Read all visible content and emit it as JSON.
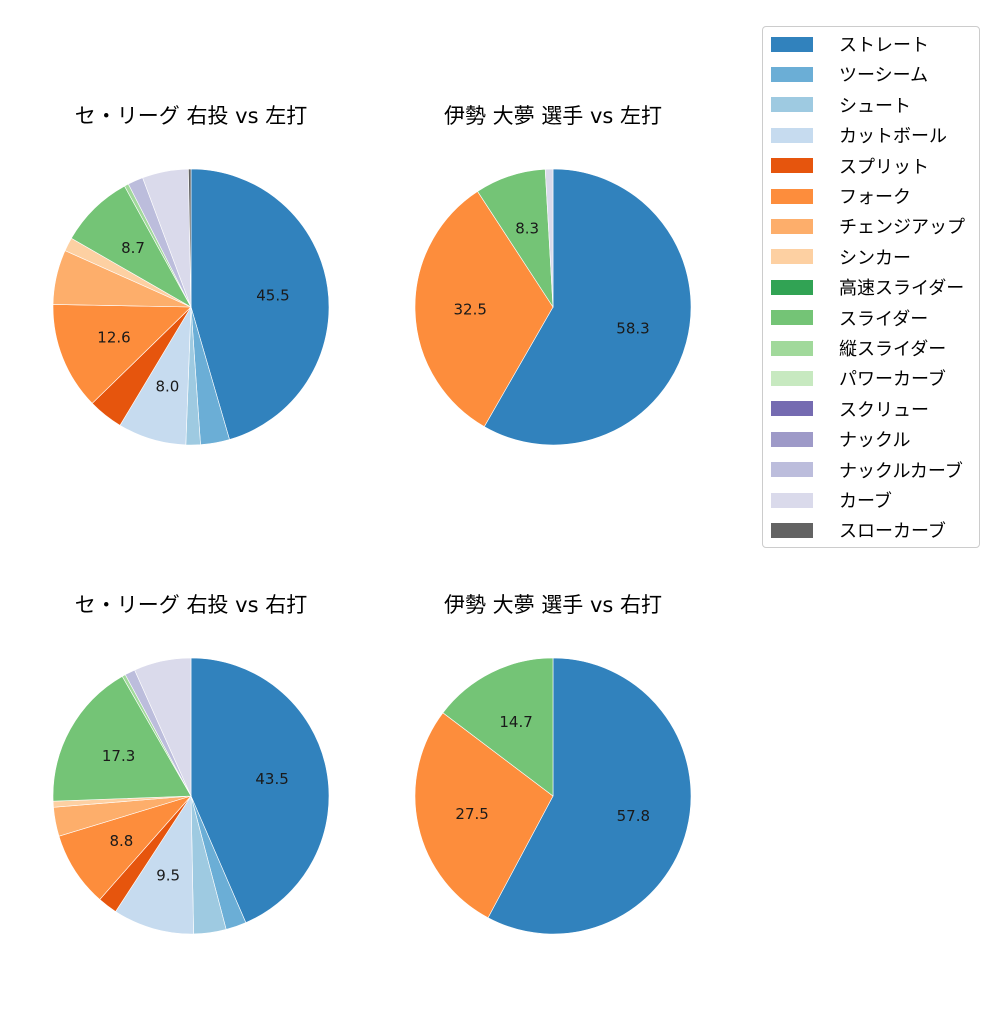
{
  "legend": {
    "items": [
      {
        "label": "ストレート",
        "color": "#3182bd"
      },
      {
        "label": "ツーシーム",
        "color": "#6baed6"
      },
      {
        "label": "シュート",
        "color": "#9ecae1"
      },
      {
        "label": "カットボール",
        "color": "#c6dbef"
      },
      {
        "label": "スプリット",
        "color": "#e6550d"
      },
      {
        "label": "フォーク",
        "color": "#fd8d3c"
      },
      {
        "label": "チェンジアップ",
        "color": "#fdae6b"
      },
      {
        "label": "シンカー",
        "color": "#fdd0a2"
      },
      {
        "label": "高速スライダー",
        "color": "#31a354"
      },
      {
        "label": "スライダー",
        "color": "#74c476"
      },
      {
        "label": "縦スライダー",
        "color": "#a1d99b"
      },
      {
        "label": "パワーカーブ",
        "color": "#c7e9c0"
      },
      {
        "label": "スクリュー",
        "color": "#756bb1"
      },
      {
        "label": "ナックル",
        "color": "#9e9ac8"
      },
      {
        "label": "ナックルカーブ",
        "color": "#bcbddc"
      },
      {
        "label": "カーブ",
        "color": "#dadaeb"
      },
      {
        "label": "スローカーブ",
        "color": "#636363"
      }
    ]
  },
  "chart_data": [
    {
      "type": "pie",
      "title": "セ・リーグ 右投 vs 左打",
      "start_angle": "12 o'clock, clockwise",
      "slices": [
        {
          "name": "ストレート",
          "value": 45.5,
          "label": "45.5"
        },
        {
          "name": "ツーシーム",
          "value": 3.4,
          "label": ""
        },
        {
          "name": "シュート",
          "value": 1.7,
          "label": ""
        },
        {
          "name": "カットボール",
          "value": 8.0,
          "label": "8.0"
        },
        {
          "name": "スプリット",
          "value": 4.1,
          "label": ""
        },
        {
          "name": "フォーク",
          "value": 12.6,
          "label": "12.6"
        },
        {
          "name": "チェンジアップ",
          "value": 6.4,
          "label": ""
        },
        {
          "name": "シンカー",
          "value": 1.6,
          "label": ""
        },
        {
          "name": "スライダー",
          "value": 8.7,
          "label": "8.7"
        },
        {
          "name": "縦スライダー",
          "value": 0.5,
          "label": ""
        },
        {
          "name": "ナックルカーブ",
          "value": 1.8,
          "label": ""
        },
        {
          "name": "カーブ",
          "value": 5.4,
          "label": ""
        },
        {
          "name": "スローカーブ",
          "value": 0.3,
          "label": ""
        }
      ]
    },
    {
      "type": "pie",
      "title": "伊勢 大夢 選手 vs 左打",
      "start_angle": "12 o'clock, clockwise",
      "slices": [
        {
          "name": "ストレート",
          "value": 58.3,
          "label": "58.3"
        },
        {
          "name": "フォーク",
          "value": 32.5,
          "label": "32.5"
        },
        {
          "name": "スライダー",
          "value": 8.3,
          "label": "8.3"
        },
        {
          "name": "カーブ",
          "value": 0.9,
          "label": ""
        }
      ]
    },
    {
      "type": "pie",
      "title": "セ・リーグ 右投 vs 右打",
      "start_angle": "12 o'clock, clockwise",
      "slices": [
        {
          "name": "ストレート",
          "value": 43.5,
          "label": "43.5"
        },
        {
          "name": "ツーシーム",
          "value": 2.4,
          "label": ""
        },
        {
          "name": "シュート",
          "value": 3.8,
          "label": ""
        },
        {
          "name": "カットボール",
          "value": 9.5,
          "label": "9.5"
        },
        {
          "name": "スプリット",
          "value": 2.3,
          "label": ""
        },
        {
          "name": "フォーク",
          "value": 8.8,
          "label": "8.8"
        },
        {
          "name": "チェンジアップ",
          "value": 3.4,
          "label": ""
        },
        {
          "name": "シンカー",
          "value": 0.7,
          "label": ""
        },
        {
          "name": "スライダー",
          "value": 17.3,
          "label": "17.3"
        },
        {
          "name": "縦スライダー",
          "value": 0.4,
          "label": ""
        },
        {
          "name": "ナックルカーブ",
          "value": 1.2,
          "label": ""
        },
        {
          "name": "カーブ",
          "value": 6.7,
          "label": ""
        }
      ]
    },
    {
      "type": "pie",
      "title": "伊勢 大夢 選手 vs 右打",
      "start_angle": "12 o'clock, clockwise",
      "slices": [
        {
          "name": "ストレート",
          "value": 57.8,
          "label": "57.8"
        },
        {
          "name": "フォーク",
          "value": 27.5,
          "label": "27.5"
        },
        {
          "name": "スライダー",
          "value": 14.7,
          "label": "14.7"
        }
      ]
    }
  ]
}
